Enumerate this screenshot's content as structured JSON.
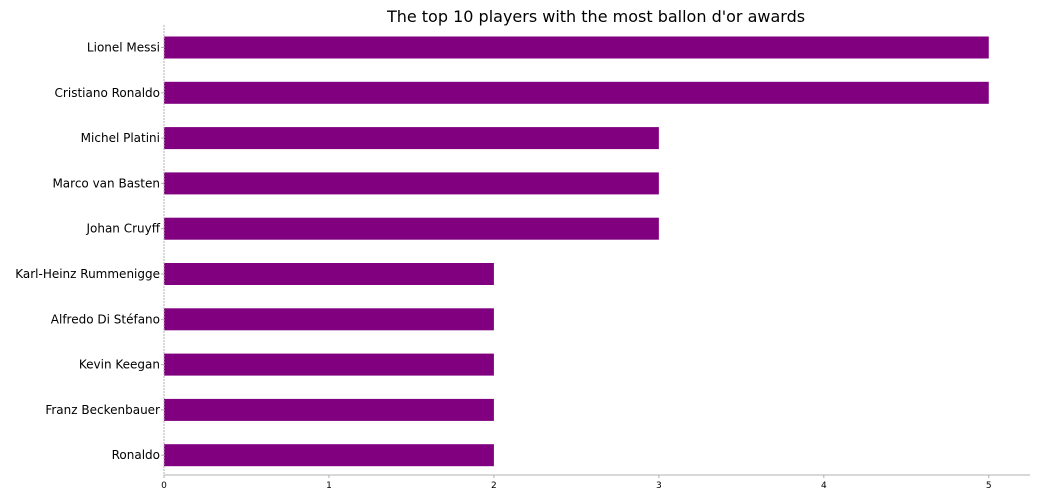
{
  "chart_data": {
    "type": "bar",
    "orientation": "horizontal",
    "title": "The top 10 players with the most ballon d'or awards",
    "xlabel": "",
    "ylabel": "",
    "categories": [
      "Lionel Messi",
      "Cristiano Ronaldo",
      "Michel Platini",
      "Marco van Basten",
      "Johan Cruyff",
      "Karl-Heinz Rummenigge",
      "Alfredo Di Stéfano",
      "Kevin Keegan",
      "Franz Beckenbauer",
      "Ronaldo"
    ],
    "values": [
      5,
      5,
      3,
      3,
      3,
      2,
      2,
      2,
      2,
      2
    ],
    "xlim": [
      0,
      5.25
    ],
    "xticks": [
      0,
      1,
      2,
      3,
      4,
      5
    ],
    "grid": false,
    "bar_color": "#800080",
    "spine_color": "#b0b0b0"
  }
}
